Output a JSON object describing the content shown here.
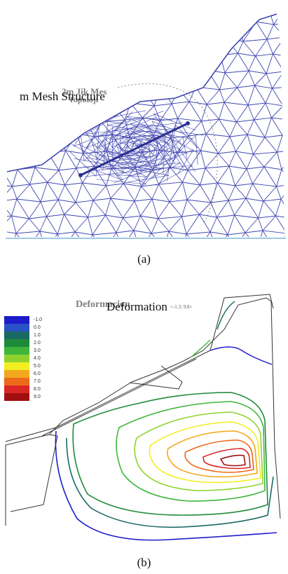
{
  "panel_a": {
    "title": "m Mesh Structure",
    "ghost_label_line1": "2m Jik Mes",
    "ghost_label_line2": "Topoloji",
    "caption": "(a)",
    "mesh_color": "#3f46b0"
  },
  "panel_b": {
    "title": "Deformation",
    "ghost_title": "Deformacion",
    "range_label": "<-1.3; 9.8>",
    "caption": "(b)",
    "legend": [
      {
        "label": "-1.0",
        "color": "#1c1cc8"
      },
      {
        "label": "0.0",
        "color": "#2a52c8"
      },
      {
        "label": "1.0",
        "color": "#1a6a64"
      },
      {
        "label": "2.0",
        "color": "#1d8a3a"
      },
      {
        "label": "3.0",
        "color": "#3fb63a"
      },
      {
        "label": "4.0",
        "color": "#8fd22e"
      },
      {
        "label": "5.0",
        "color": "#f2ee22"
      },
      {
        "label": "6.0",
        "color": "#f2a81c"
      },
      {
        "label": "7.0",
        "color": "#ec6b1a"
      },
      {
        "label": "8.0",
        "color": "#dc2626"
      },
      {
        "label": "9.0",
        "color": "#a01010"
      }
    ]
  }
}
